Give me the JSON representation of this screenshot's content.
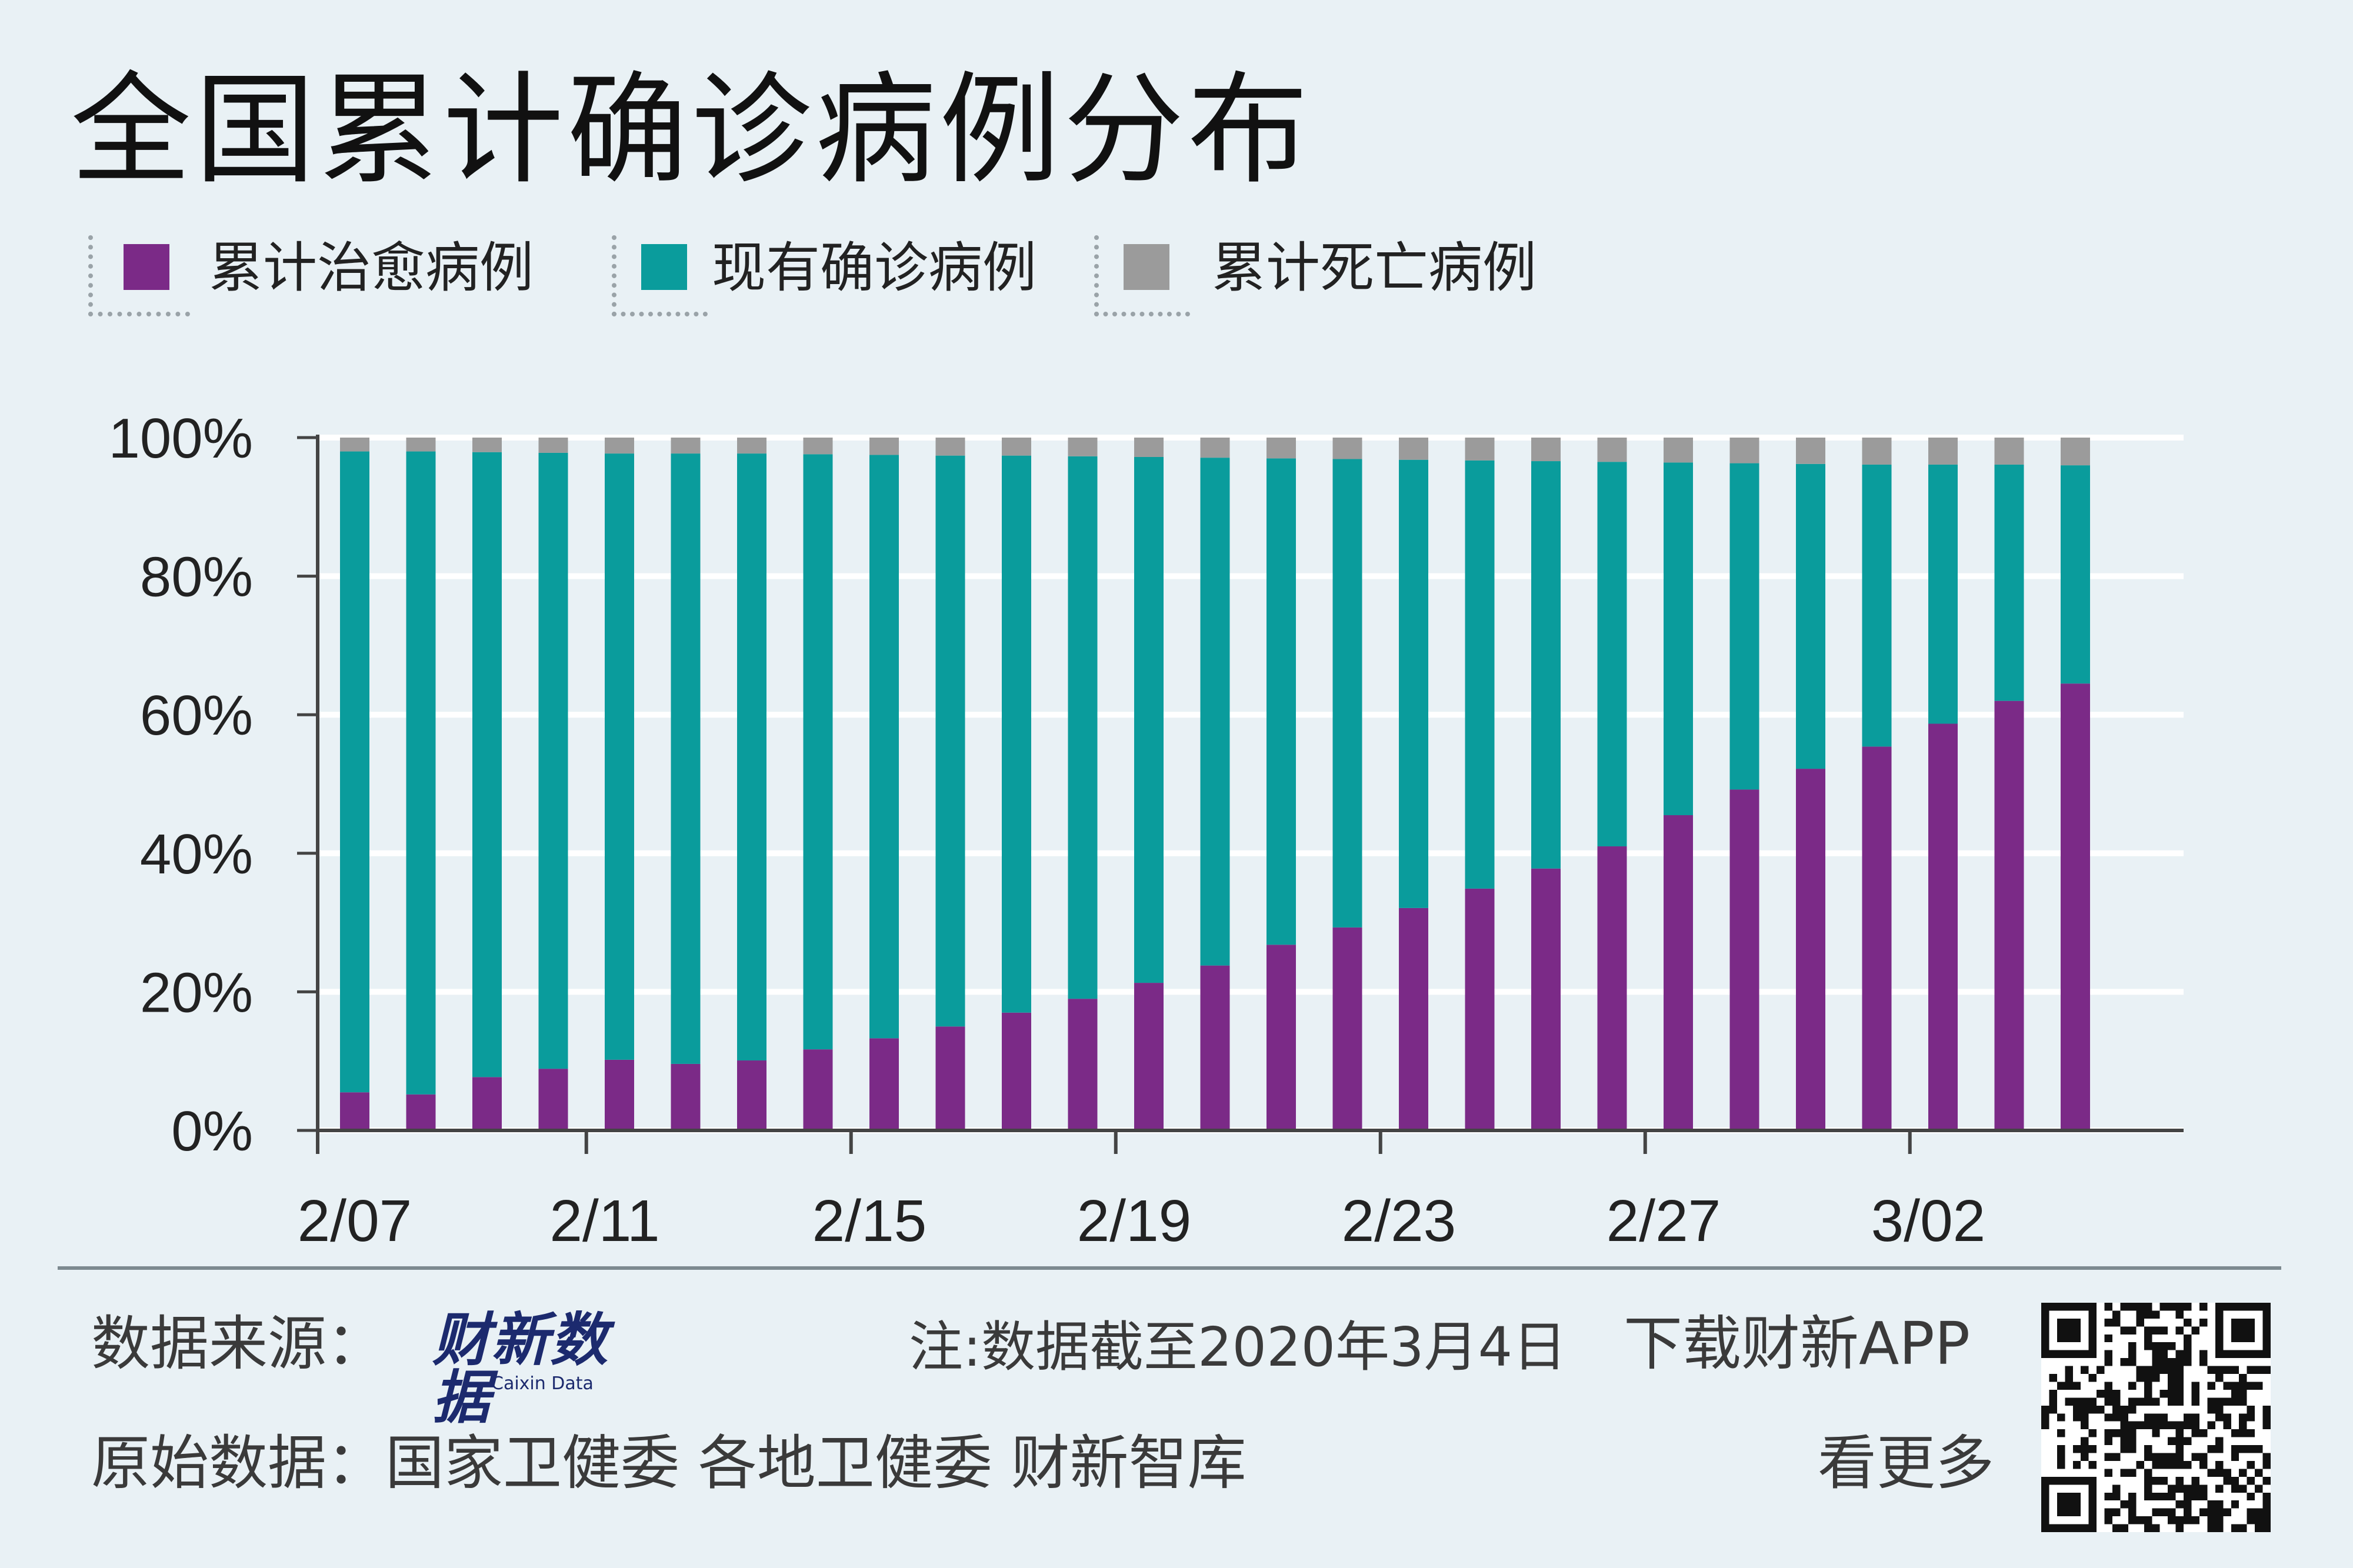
{
  "title": "全国累计确诊病例分布",
  "legend": [
    {
      "label": "累计治愈病例",
      "color": "#7b2a87"
    },
    {
      "label": "现有确诊病例",
      "color": "#0a9c9c"
    },
    {
      "label": "累计死亡病例",
      "color": "#9b9b9b"
    }
  ],
  "chart_data": {
    "type": "bar",
    "stacked": true,
    "title": "全国累计确诊病例分布",
    "xlabel": "",
    "ylabel": "",
    "ylim": [
      0,
      100
    ],
    "yticks": [
      "0%",
      "20%",
      "40%",
      "60%",
      "80%",
      "100%"
    ],
    "xtick_labels": [
      {
        "index": 0,
        "label": "2/07"
      },
      {
        "index": 4,
        "label": "2/11"
      },
      {
        "index": 8,
        "label": "2/15"
      },
      {
        "index": 12,
        "label": "2/19"
      },
      {
        "index": 16,
        "label": "2/23"
      },
      {
        "index": 20,
        "label": "2/27"
      },
      {
        "index": 24,
        "label": "3/02"
      }
    ],
    "categories": [
      "2/07",
      "2/08",
      "2/09",
      "2/10",
      "2/11",
      "2/12",
      "2/13",
      "2/14",
      "2/15",
      "2/16",
      "2/17",
      "2/18",
      "2/19",
      "2/20",
      "2/21",
      "2/22",
      "2/23",
      "2/24",
      "2/25",
      "2/26",
      "2/27",
      "2/28",
      "2/29",
      "3/01",
      "3/02",
      "3/03",
      "3/04"
    ],
    "series": [
      {
        "name": "累计治愈病例",
        "color": "#7b2a87",
        "values": [
          5.5,
          5.2,
          7.7,
          8.9,
          10.2,
          9.6,
          10.1,
          11.7,
          13.3,
          15.0,
          17.0,
          19.0,
          21.3,
          23.8,
          26.8,
          29.3,
          32.1,
          34.9,
          37.8,
          41.0,
          45.5,
          49.2,
          52.2,
          55.4,
          58.7,
          62.0,
          64.5
        ]
      },
      {
        "name": "现有确诊病例",
        "color": "#0a9c9c",
        "values": [
          92.5,
          92.8,
          90.2,
          88.9,
          87.5,
          88.1,
          87.6,
          85.9,
          84.2,
          82.4,
          80.4,
          78.3,
          75.9,
          73.3,
          70.2,
          67.6,
          64.7,
          61.8,
          58.8,
          55.5,
          50.9,
          47.1,
          44.0,
          40.7,
          37.4,
          34.1,
          31.5
        ]
      },
      {
        "name": "累计死亡病例",
        "color": "#9b9b9b",
        "values": [
          2.0,
          2.0,
          2.1,
          2.2,
          2.3,
          2.3,
          2.3,
          2.4,
          2.5,
          2.6,
          2.6,
          2.7,
          2.8,
          2.9,
          3.0,
          3.1,
          3.2,
          3.3,
          3.4,
          3.5,
          3.6,
          3.7,
          3.8,
          3.9,
          3.9,
          3.9,
          4.0
        ]
      }
    ]
  },
  "footer": {
    "source_label": "数据来源：",
    "logo_text": "财新数据",
    "logo_sub": "Caixin Data",
    "note": "注:数据截至2020年3月4日",
    "download": "下载财新APP",
    "raw_data": "原始数据：国家卫健委 各地卫健委 财新智库",
    "more": "看更多"
  }
}
